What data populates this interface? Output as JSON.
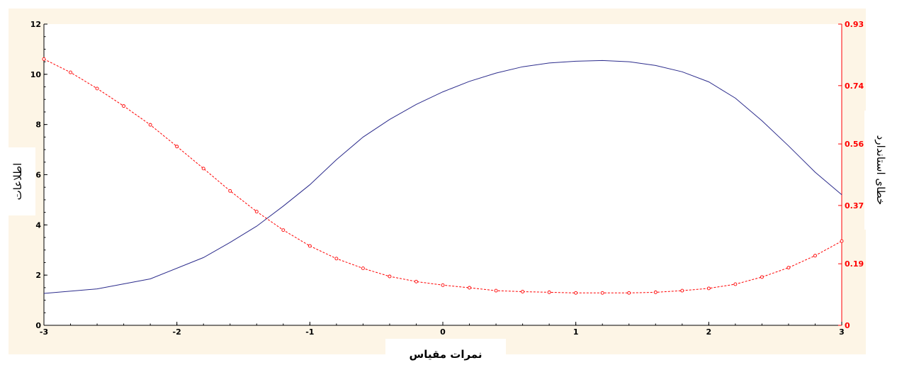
{
  "chart_data": {
    "type": "line",
    "xlabel": "نمرات مقیاس",
    "ylabel": "اطلاعات",
    "y2label": "خطای استاندارد",
    "xlim": [
      -3,
      3
    ],
    "ylim": [
      0,
      12
    ],
    "y2lim": [
      0,
      0.93
    ],
    "x_ticks": [
      -3,
      -2,
      -1,
      0,
      1,
      2,
      3
    ],
    "y_ticks": [
      0,
      2,
      4,
      6,
      8,
      10,
      12
    ],
    "y2_ticks": [
      "0",
      "0.19",
      "0.37",
      "0.56",
      "0.74",
      "0.93"
    ],
    "grid": false,
    "colors": {
      "information": "#2c2c8c",
      "standard_error": "#ff0000",
      "y2_axis": "#ff0000",
      "background": "#fdf5e6"
    },
    "series": [
      {
        "axis": "left",
        "style": "solid",
        "x": [
          -3.0,
          -2.6,
          -2.2,
          -1.8,
          -1.6,
          -1.4,
          -1.2,
          -1.0,
          -0.8,
          -0.6,
          -0.4,
          -0.2,
          0.0,
          0.2,
          0.4,
          0.6,
          0.8,
          1.0,
          1.2,
          1.4,
          1.6,
          1.8,
          2.0,
          2.2,
          2.4,
          2.6,
          2.8,
          3.0
        ],
        "y": [
          1.27,
          1.45,
          1.85,
          2.7,
          3.3,
          3.95,
          4.75,
          5.6,
          6.6,
          7.5,
          8.2,
          8.8,
          9.3,
          9.72,
          10.05,
          10.3,
          10.45,
          10.52,
          10.55,
          10.5,
          10.35,
          10.1,
          9.7,
          9.05,
          8.15,
          7.15,
          6.1,
          5.2
        ]
      },
      {
        "axis": "right",
        "style": "dashed-markers",
        "x": [
          -3.0,
          -2.8,
          -2.6,
          -2.4,
          -2.2,
          -2.0,
          -1.8,
          -1.6,
          -1.4,
          -1.2,
          -1.0,
          -0.8,
          -0.6,
          -0.4,
          -0.2,
          0.0,
          0.2,
          0.4,
          0.6,
          0.8,
          1.0,
          1.2,
          1.4,
          1.6,
          1.8,
          2.0,
          2.2,
          2.4,
          2.6,
          2.8,
          3.0
        ],
        "y": [
          0.822,
          0.781,
          0.731,
          0.677,
          0.619,
          0.552,
          0.484,
          0.415,
          0.351,
          0.294,
          0.245,
          0.206,
          0.176,
          0.151,
          0.135,
          0.124,
          0.116,
          0.107,
          0.104,
          0.102,
          0.1,
          0.1,
          0.1,
          0.102,
          0.107,
          0.114,
          0.127,
          0.149,
          0.178,
          0.215,
          0.26
        ]
      }
    ]
  }
}
